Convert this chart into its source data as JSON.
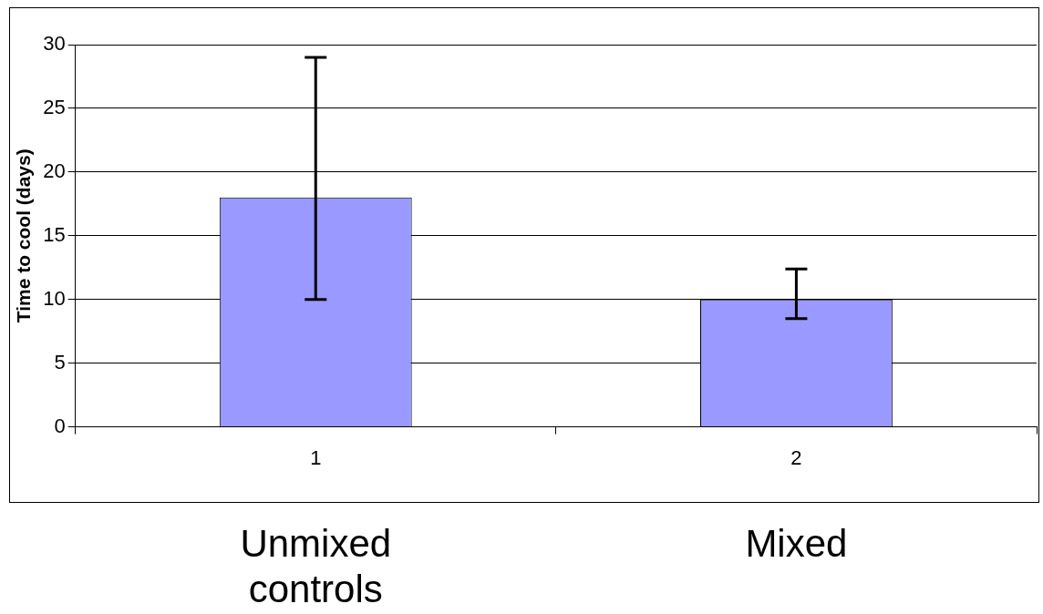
{
  "chart_data": {
    "type": "bar",
    "ylabel": "Time to cool (days)",
    "categories": [
      "1",
      "2"
    ],
    "values": [
      18,
      10
    ],
    "errors": [
      [
        10,
        29
      ],
      [
        8.5,
        12.4
      ]
    ],
    "color": "#9999ff",
    "ylim": [
      0,
      30
    ],
    "yticks": [
      0,
      5,
      10,
      15,
      20,
      25,
      30
    ],
    "grid": "y",
    "legend": false,
    "annotations": [
      "Unmixed controls",
      "Mixed"
    ]
  }
}
